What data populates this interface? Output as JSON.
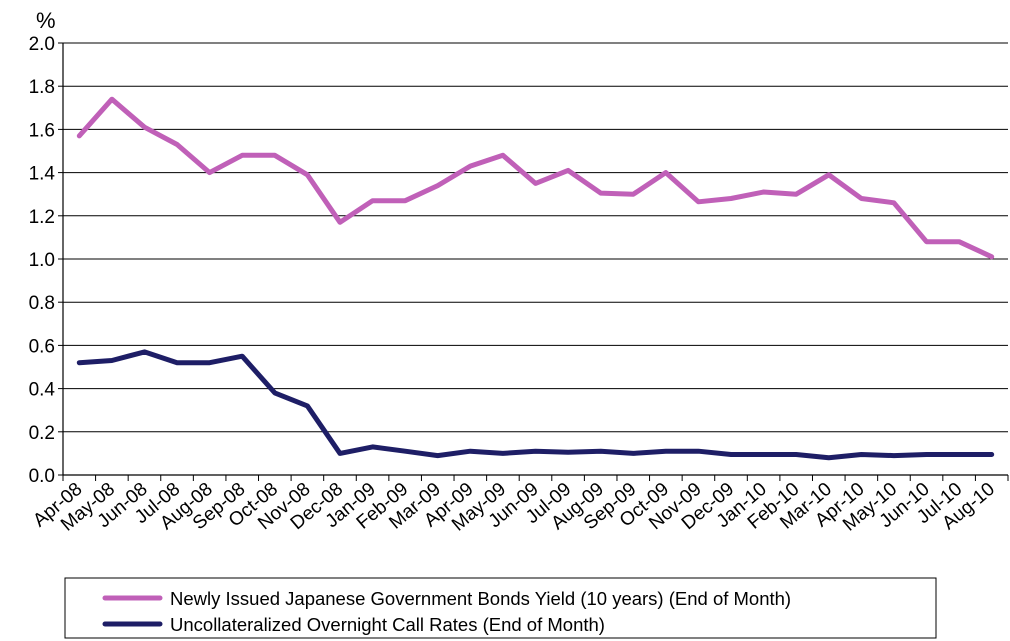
{
  "chart_data": {
    "type": "line",
    "title": "",
    "xlabel": "",
    "ylabel": "%",
    "ylim": [
      0,
      2.0
    ],
    "yticks": [
      "0.0",
      "0.2",
      "0.4",
      "0.6",
      "0.8",
      "1.0",
      "1.2",
      "1.4",
      "1.6",
      "1.8",
      "2.0"
    ],
    "grid": true,
    "legend_position": "bottom",
    "categories": [
      "Apr-08",
      "May-08",
      "Jun-08",
      "Jul-08",
      "Aug-08",
      "Sep-08",
      "Oct-08",
      "Nov-08",
      "Dec-08",
      "Jan-09",
      "Feb-09",
      "Mar-09",
      "Apr-09",
      "May-09",
      "Jun-09",
      "Jul-09",
      "Aug-09",
      "Sep-09",
      "Oct-09",
      "Nov-09",
      "Dec-09",
      "Jan-10",
      "Feb-10",
      "Mar-10",
      "Apr-10",
      "May-10",
      "Jun-10",
      "Jul-10",
      "Aug-10"
    ],
    "series": [
      {
        "name": "Newly Issued Japanese Government Bonds Yield (10 years) (End of Month)",
        "color": "#c060b8",
        "values": [
          1.57,
          1.74,
          1.61,
          1.53,
          1.4,
          1.48,
          1.48,
          1.39,
          1.17,
          1.27,
          1.27,
          1.34,
          1.43,
          1.48,
          1.35,
          1.41,
          1.305,
          1.3,
          1.4,
          1.265,
          1.28,
          1.31,
          1.3,
          1.39,
          1.28,
          1.26,
          1.08,
          1.08,
          1.01
        ]
      },
      {
        "name": "Uncollateralized Overnight Call Rates (End of Month)",
        "color": "#1e1e66",
        "values": [
          0.52,
          0.53,
          0.57,
          0.52,
          0.52,
          0.55,
          0.38,
          0.32,
          0.1,
          0.13,
          0.11,
          0.09,
          0.11,
          0.1,
          0.11,
          0.105,
          0.11,
          0.1,
          0.11,
          0.11,
          0.095,
          0.095,
          0.095,
          0.08,
          0.095,
          0.09,
          0.095,
          0.095,
          0.095
        ]
      }
    ]
  }
}
